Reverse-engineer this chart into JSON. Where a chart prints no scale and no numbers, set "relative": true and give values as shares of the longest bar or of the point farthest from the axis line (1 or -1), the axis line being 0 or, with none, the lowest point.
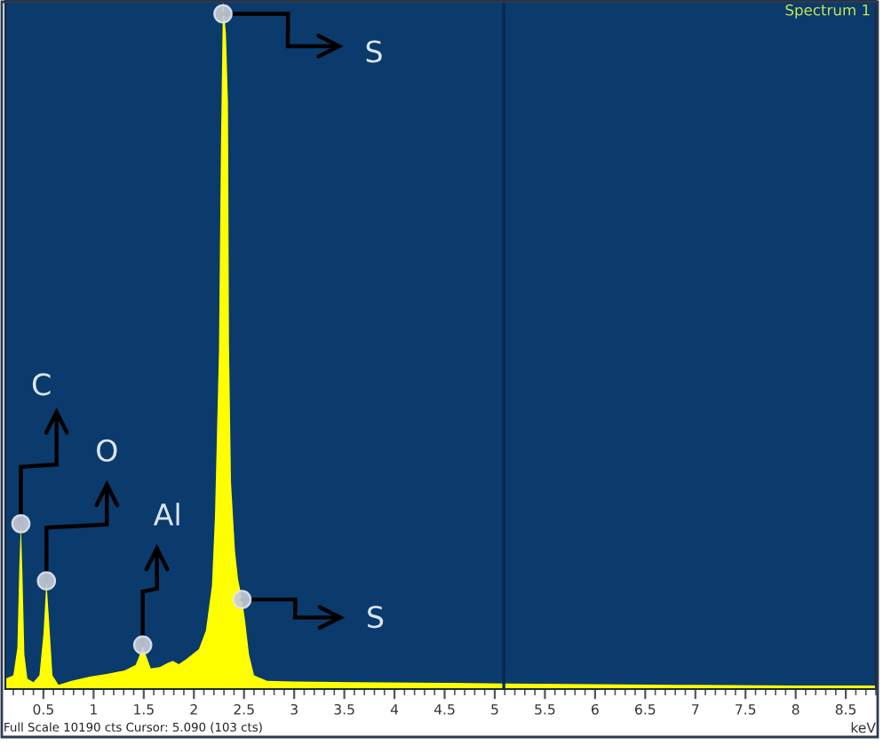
{
  "chart_data": {
    "type": "area",
    "title": "Spectrum 1",
    "xlabel": "keV",
    "relative": true,
    "color": "#ffff00",
    "x": [
      0.12,
      0.2,
      0.24,
      0.26,
      0.275,
      0.29,
      0.31,
      0.34,
      0.4,
      0.46,
      0.5,
      0.53,
      0.56,
      0.59,
      0.65,
      0.78,
      0.96,
      1.13,
      1.31,
      1.42,
      1.46,
      1.49,
      1.52,
      1.57,
      1.66,
      1.74,
      1.79,
      1.85,
      1.93,
      2.05,
      2.12,
      2.18,
      2.21,
      2.25,
      2.27,
      2.29,
      2.32,
      2.34,
      2.35,
      2.37,
      2.41,
      2.44,
      2.48,
      2.51,
      2.55,
      2.6,
      2.73,
      3.0,
      3.6,
      4.5,
      5.1,
      6.0,
      7.0,
      8.0,
      8.8
    ],
    "values": [
      0.015,
      0.02,
      0.06,
      0.18,
      0.24,
      0.17,
      0.05,
      0.015,
      0.01,
      0.02,
      0.08,
      0.157,
      0.09,
      0.02,
      0.006,
      0.012,
      0.018,
      0.022,
      0.027,
      0.035,
      0.05,
      0.064,
      0.05,
      0.03,
      0.032,
      0.038,
      0.041,
      0.036,
      0.044,
      0.058,
      0.085,
      0.15,
      0.25,
      0.49,
      0.79,
      1.0,
      0.95,
      0.85,
      0.5,
      0.3,
      0.2,
      0.16,
      0.13,
      0.1,
      0.05,
      0.02,
      0.012,
      0.011,
      0.01,
      0.009,
      0.008,
      0.007,
      0.006,
      0.005,
      0.005
    ],
    "xlim": [
      0.12,
      8.8
    ],
    "xticks": [
      0.5,
      1,
      1.5,
      2,
      2.5,
      3,
      3.5,
      4,
      4.5,
      5,
      5.5,
      6,
      6.5,
      7,
      7.5,
      8,
      8.5
    ],
    "ref_lines": [
      {
        "axis": "x",
        "value": 5.09,
        "color": "#06284c"
      }
    ],
    "annotations": [
      {
        "text": "C",
        "x": 0.275,
        "y": 0.24
      },
      {
        "text": "O",
        "x": 0.53,
        "y": 0.157
      },
      {
        "text": "Al",
        "x": 1.49,
        "y": 0.064
      },
      {
        "text": "S",
        "x": 2.29,
        "y": 0.98
      },
      {
        "text": "S",
        "x": 2.48,
        "y": 0.13
      },
      "Full Scale 10190 cts Cursor: 5.090 (103 cts)"
    ]
  }
}
